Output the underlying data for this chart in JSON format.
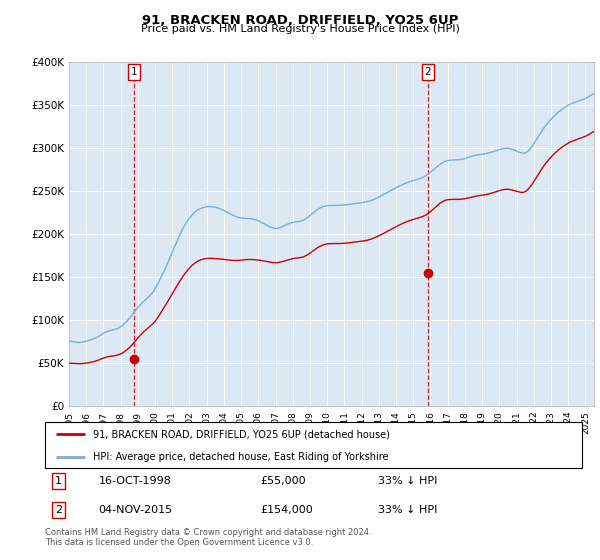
{
  "title": "91, BRACKEN ROAD, DRIFFIELD, YO25 6UP",
  "subtitle": "Price paid vs. HM Land Registry's House Price Index (HPI)",
  "ylim": [
    0,
    400000
  ],
  "yticks": [
    0,
    50000,
    100000,
    150000,
    200000,
    250000,
    300000,
    350000,
    400000
  ],
  "ytick_labels": [
    "£0",
    "£50K",
    "£100K",
    "£150K",
    "£200K",
    "£250K",
    "£300K",
    "£350K",
    "£400K"
  ],
  "xlim_start": 1995.0,
  "xlim_end": 2025.5,
  "plot_bg_color": "#dce9f5",
  "grid_color": "#ffffff",
  "transaction1": {
    "date_label": "16-OCT-1998",
    "year": 1998.79,
    "price": 55000,
    "pct": "33% ↓ HPI"
  },
  "transaction2": {
    "date_label": "04-NOV-2015",
    "year": 2015.84,
    "price": 154000,
    "pct": "33% ↓ HPI"
  },
  "red_line_color": "#cc0000",
  "blue_line_color": "#7aadd4",
  "vline_color": "#cc0000",
  "legend_label_red": "91, BRACKEN ROAD, DRIFFIELD, YO25 6UP (detached house)",
  "legend_label_blue": "HPI: Average price, detached house, East Riding of Yorkshire",
  "footer": "Contains HM Land Registry data © Crown copyright and database right 2024.\nThis data is licensed under the Open Government Licence v3.0.",
  "marker_box_color": "#cc0000",
  "hpi_years_start": 1995.0,
  "hpi_month_step": 0.08333,
  "hpi_prices": [
    75500,
    75200,
    74800,
    74500,
    74200,
    74000,
    73800,
    73700,
    73900,
    74200,
    74600,
    75000,
    75300,
    75700,
    76200,
    76700,
    77300,
    77900,
    78600,
    79400,
    80300,
    81300,
    82400,
    83500,
    84500,
    85400,
    86200,
    86900,
    87300,
    87700,
    88100,
    88500,
    89000,
    89600,
    90200,
    91000,
    92000,
    93200,
    94600,
    96200,
    97900,
    99700,
    101600,
    103600,
    105800,
    108100,
    110300,
    112400,
    114400,
    116300,
    118100,
    119800,
    121400,
    122900,
    124400,
    125900,
    127500,
    129300,
    131300,
    133600,
    136200,
    139200,
    142400,
    145700,
    149000,
    152400,
    155800,
    159300,
    163000,
    166800,
    170700,
    174600,
    178500,
    182400,
    186300,
    190200,
    194000,
    197800,
    201400,
    204800,
    208000,
    210900,
    213600,
    216100,
    218400,
    220500,
    222400,
    224100,
    225600,
    226900,
    228000,
    228900,
    229600,
    230200,
    230700,
    231100,
    231400,
    231500,
    231600,
    231500,
    231400,
    231100,
    230800,
    230400,
    229900,
    229300,
    228600,
    227900,
    227100,
    226200,
    225300,
    224400,
    223500,
    222600,
    221700,
    220900,
    220200,
    219600,
    219100,
    218700,
    218400,
    218200,
    218100,
    218000,
    217900,
    217800,
    217700,
    217500,
    217200,
    216800,
    216300,
    215700,
    215000,
    214200,
    213400,
    212500,
    211600,
    210700,
    209800,
    208900,
    208100,
    207400,
    206900,
    206500,
    206300,
    206400,
    206700,
    207200,
    207800,
    208500,
    209300,
    210100,
    210900,
    211600,
    212200,
    212800,
    213200,
    213500,
    213800,
    214000,
    214200,
    214500,
    214900,
    215500,
    216300,
    217300,
    218500,
    219800,
    221200,
    222600,
    224000,
    225400,
    226700,
    227900,
    229000,
    230000,
    230800,
    231500,
    232000,
    232400,
    232700,
    232900,
    233000,
    233000,
    233000,
    233000,
    233000,
    233000,
    233100,
    233100,
    233200,
    233300,
    233400,
    233600,
    233800,
    234000,
    234200,
    234500,
    234700,
    235000,
    235200,
    235500,
    235700,
    235900,
    236200,
    236400,
    236700,
    237000,
    237400,
    237800,
    238300,
    238900,
    239500,
    240200,
    241000,
    241800,
    242700,
    243600,
    244500,
    245400,
    246300,
    247200,
    248100,
    249000,
    249900,
    250800,
    251700,
    252600,
    253500,
    254400,
    255200,
    256000,
    256800,
    257600,
    258300,
    259000,
    259600,
    260200,
    260800,
    261300,
    261800,
    262300,
    262800,
    263300,
    263800,
    264400,
    265100,
    265900,
    266800,
    267800,
    268900,
    270200,
    271500,
    272900,
    274300,
    275700,
    277100,
    278500,
    279800,
    281100,
    282200,
    283200,
    284000,
    284600,
    285000,
    285300,
    285500,
    285600,
    285700,
    285700,
    285800,
    285900,
    286000,
    286200,
    286500,
    286900,
    287400,
    287900,
    288500,
    289100,
    289700,
    290200,
    290700,
    291100,
    291400,
    291700,
    292000,
    292200,
    292500,
    292700,
    293000,
    293300,
    293700,
    294100,
    294600,
    295100,
    295600,
    296200,
    296700,
    297300,
    297800,
    298300,
    298700,
    299000,
    299200,
    299300,
    299200,
    299000,
    298600,
    298100,
    297500,
    296800,
    296100,
    295400,
    294700,
    294200,
    293800,
    293700,
    294000,
    294700,
    296000,
    297700,
    299700,
    302000,
    304500,
    307100,
    309700,
    312400,
    315100,
    317800,
    320400,
    322800,
    325000,
    327100,
    329100,
    331100,
    333000,
    334800,
    336500,
    338100,
    339600,
    341100,
    342400,
    343700,
    344900,
    346100,
    347200,
    348300,
    349300,
    350200,
    351000,
    351700,
    352300,
    352900,
    353500,
    354100,
    354700,
    355300,
    355900,
    356500,
    357200,
    358000,
    358900,
    360000,
    361000,
    362000,
    362900,
    363700,
    364300,
    364700,
    364900,
    365000,
    365000,
    365000,
    365100,
    365300,
    365700,
    366200,
    366900,
    367700,
    368600,
    369600,
    370500,
    371300,
    371900,
    372300,
    372700,
    373100
  ],
  "red_prices": [
    49800,
    49700,
    49600,
    49500,
    49400,
    49300,
    49200,
    49100,
    49100,
    49200,
    49400,
    49600,
    49800,
    50000,
    50300,
    50600,
    51000,
    51400,
    51900,
    52400,
    53000,
    53700,
    54400,
    55100,
    55700,
    56300,
    56800,
    57200,
    57500,
    57700,
    58000,
    58200,
    58500,
    58900,
    59300,
    59800,
    60500,
    61300,
    62300,
    63500,
    64800,
    66200,
    67700,
    69300,
    71100,
    73000,
    75000,
    77000,
    79000,
    80900,
    82700,
    84400,
    86100,
    87600,
    89100,
    90500,
    91900,
    93300,
    94800,
    96500,
    98300,
    100500,
    103000,
    105600,
    108200,
    110900,
    113500,
    116200,
    119000,
    121800,
    124700,
    127600,
    130400,
    133200,
    136100,
    138900,
    141700,
    144400,
    147000,
    149500,
    152000,
    154200,
    156400,
    158400,
    160300,
    162000,
    163600,
    165000,
    166300,
    167400,
    168400,
    169200,
    169900,
    170400,
    170800,
    171100,
    171300,
    171400,
    171500,
    171500,
    171500,
    171400,
    171300,
    171200,
    171000,
    170800,
    170600,
    170400,
    170200,
    170000,
    169800,
    169600,
    169400,
    169200,
    169100,
    169000,
    169000,
    169000,
    169100,
    169200,
    169400,
    169600,
    169800,
    170000,
    170100,
    170200,
    170200,
    170200,
    170100,
    170000,
    169900,
    169700,
    169500,
    169300,
    169000,
    168700,
    168400,
    168000,
    167700,
    167400,
    167100,
    166800,
    166600,
    166500,
    166400,
    166400,
    166600,
    166900,
    167300,
    167800,
    168300,
    168900,
    169400,
    169900,
    170400,
    170800,
    171200,
    171500,
    171700,
    171900,
    172100,
    172300,
    172600,
    173000,
    173600,
    174400,
    175300,
    176400,
    177600,
    178800,
    180100,
    181300,
    182500,
    183600,
    184600,
    185500,
    186300,
    187000,
    187500,
    187900,
    188300,
    188500,
    188600,
    188600,
    188600,
    188600,
    188600,
    188600,
    188700,
    188700,
    188800,
    188900,
    189000,
    189200,
    189300,
    189500,
    189700,
    189900,
    190100,
    190300,
    190500,
    190700,
    190900,
    191100,
    191400,
    191600,
    191900,
    192200,
    192600,
    193000,
    193500,
    194100,
    194700,
    195400,
    196100,
    196900,
    197700,
    198500,
    199400,
    200200,
    201100,
    202000,
    202900,
    203800,
    204700,
    205600,
    206500,
    207400,
    208300,
    209200,
    210000,
    210800,
    211600,
    212400,
    213100,
    213800,
    214400,
    215000,
    215600,
    216100,
    216600,
    217100,
    217600,
    218100,
    218600,
    219100,
    219700,
    220400,
    221200,
    222100,
    223200,
    224400,
    225800,
    227200,
    228700,
    230200,
    231700,
    233200,
    234600,
    235900,
    237000,
    237900,
    238700,
    239200,
    239600,
    239800,
    239900,
    239900,
    239900,
    239900,
    239900,
    239900,
    240000,
    240100,
    240300,
    240500,
    240800,
    241100,
    241500,
    241900,
    242300,
    242700,
    243100,
    243500,
    243800,
    244100,
    244400,
    244700,
    244900,
    245200,
    245400,
    245700,
    246000,
    246400,
    246900,
    247400,
    247900,
    248500,
    249000,
    249600,
    250100,
    250600,
    251000,
    251400,
    251600,
    251700,
    251700,
    251500,
    251200,
    250800,
    250400,
    249900,
    249400,
    248900,
    248500,
    248200,
    248100,
    248300,
    249000,
    250100,
    251700,
    253600,
    255700,
    258000,
    260500,
    263100,
    265700,
    268400,
    271100,
    273800,
    276400,
    278800,
    281000,
    283100,
    285100,
    287100,
    289000,
    290800,
    292500,
    294100,
    295600,
    297100,
    298400,
    299700,
    300900,
    302100,
    303200,
    304300,
    305300,
    306200,
    307000,
    307700,
    308300,
    308900,
    309500,
    310100,
    310700,
    311300,
    311900,
    312500,
    313200,
    314000,
    314900,
    316000,
    317000,
    318000,
    318900,
    319700,
    320300,
    320700,
    320900,
    321000,
    321000,
    321000,
    321100,
    321300,
    321700,
    322200,
    322900,
    323700,
    324600,
    325600,
    326500,
    327300,
    327900,
    328300,
    328700,
    329100
  ]
}
